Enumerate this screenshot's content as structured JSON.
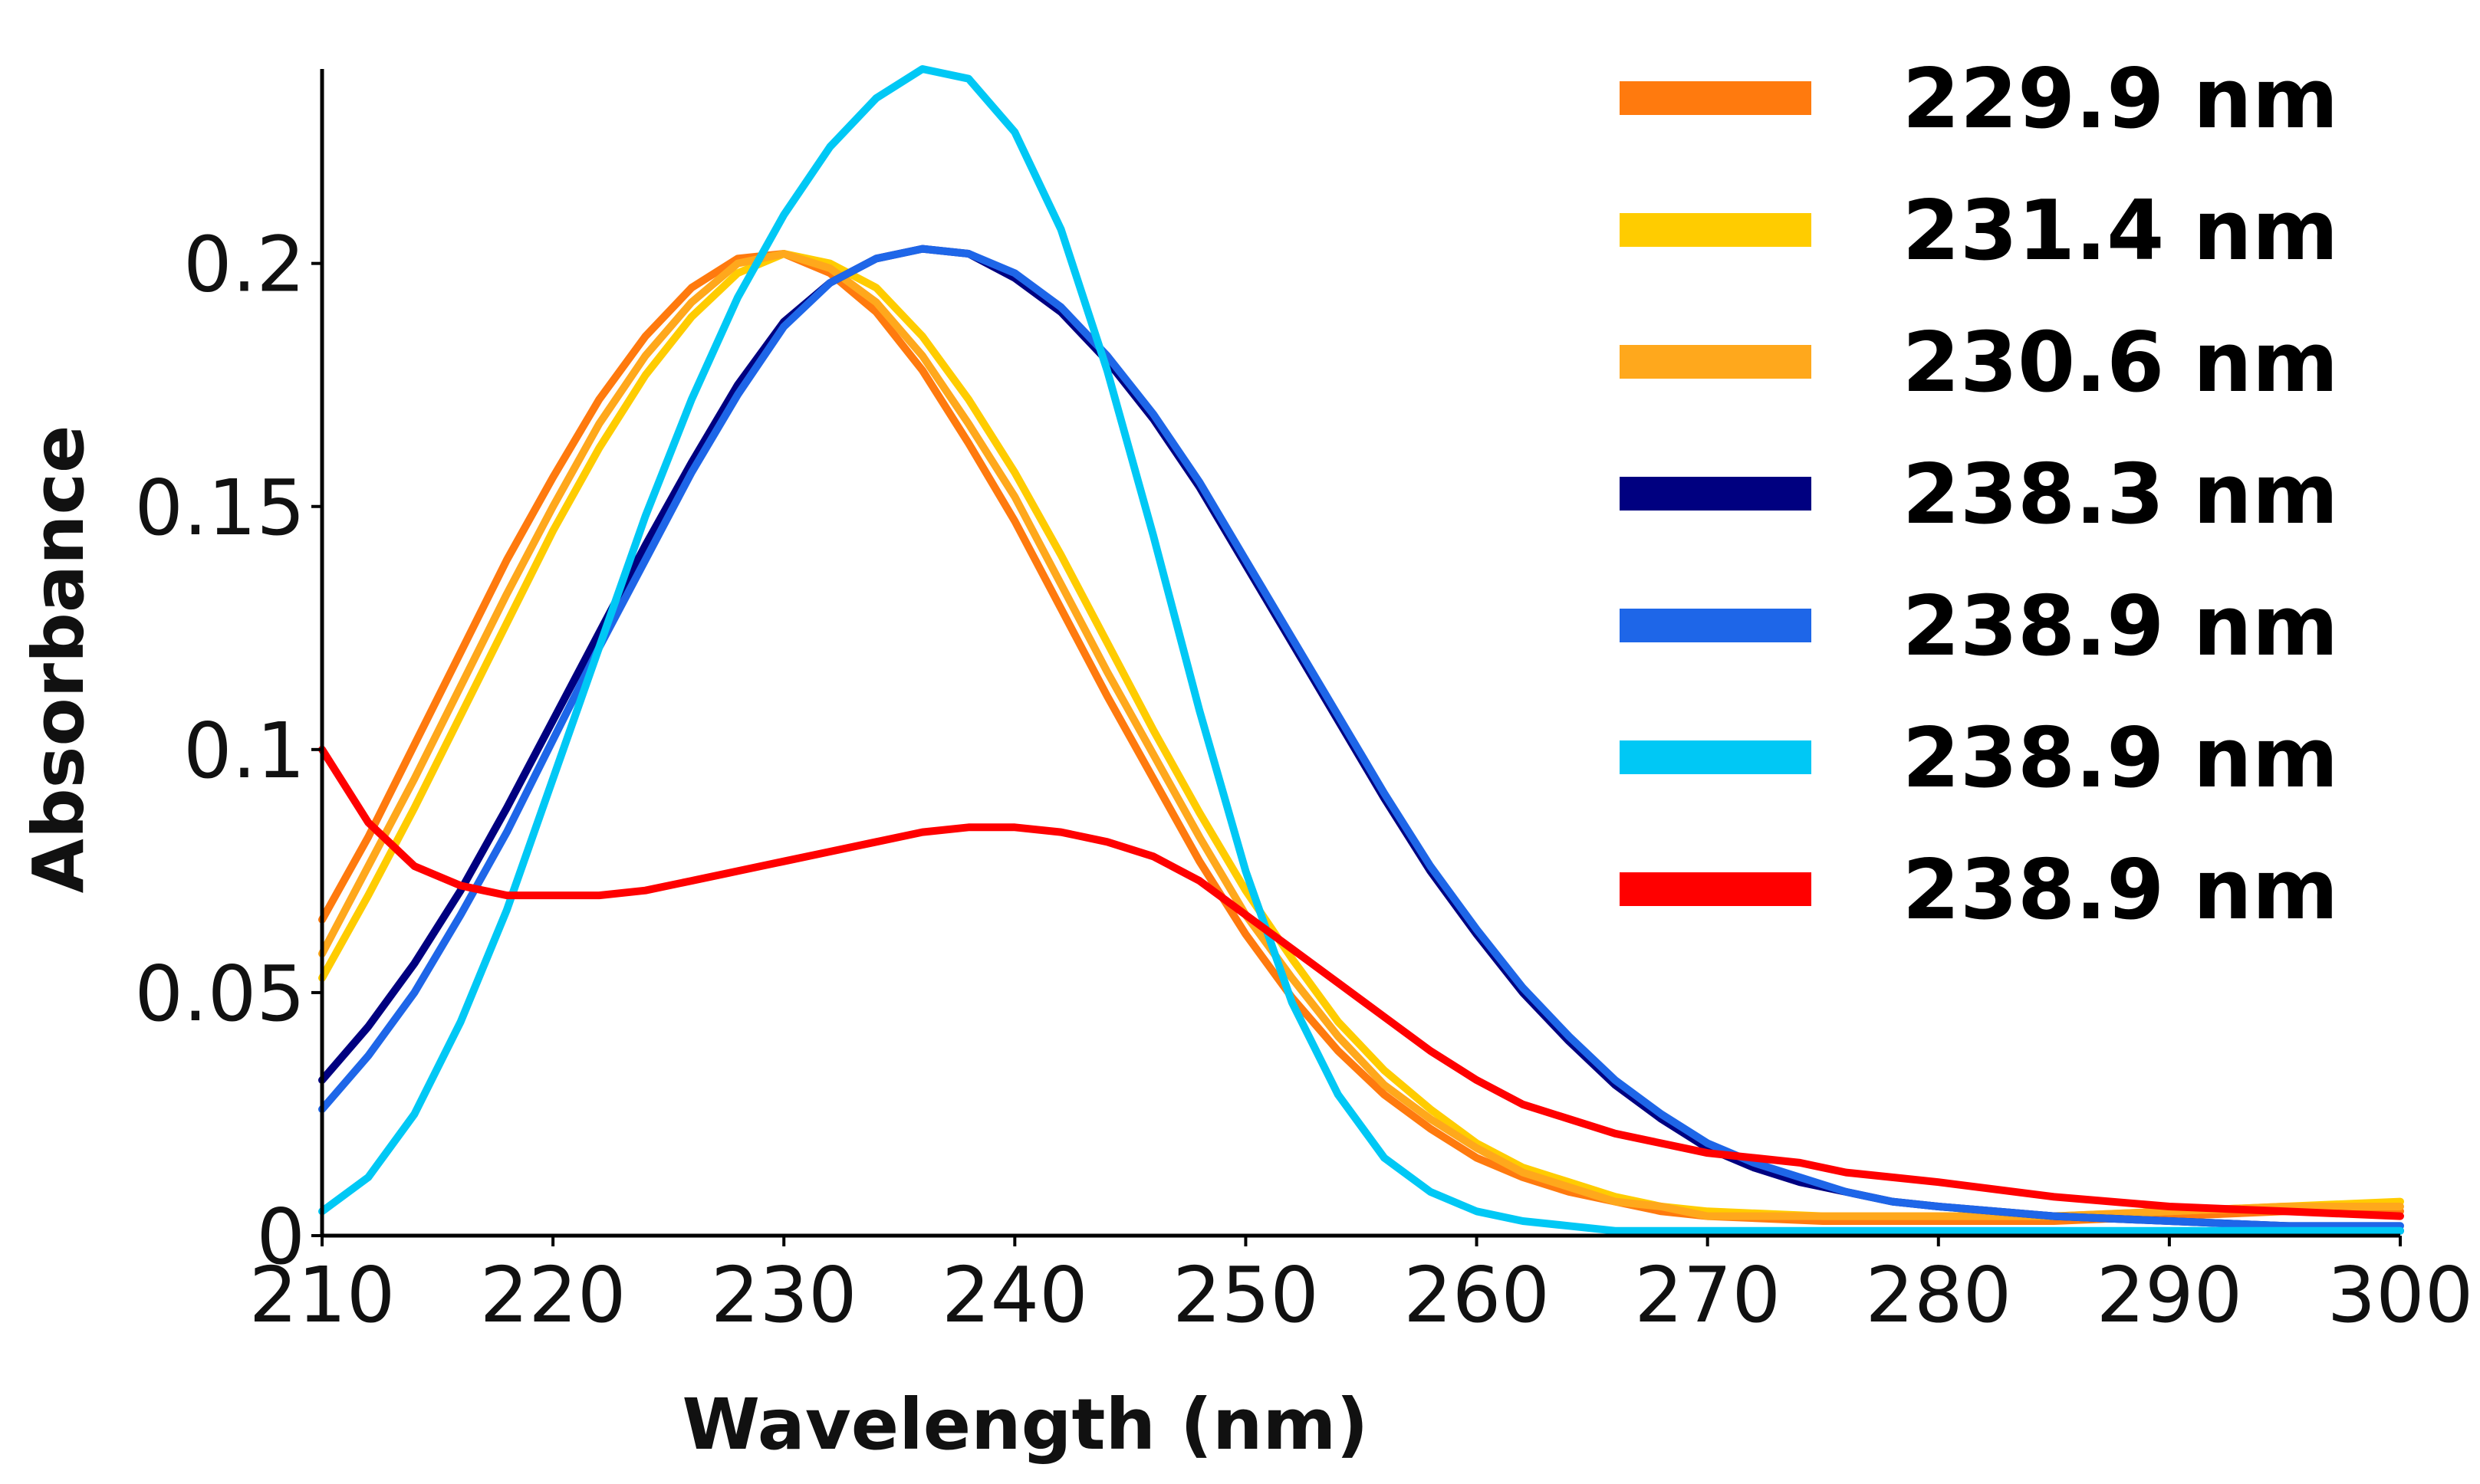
{
  "chart_data": {
    "type": "line",
    "title": "",
    "xlabel": "Wavelength (nm)",
    "ylabel": "Absorbance",
    "xlim": [
      210,
      300
    ],
    "ylim": [
      0,
      0.24
    ],
    "grid": false,
    "legend_position": "top-right",
    "x_ticks": [
      {
        "value": 210,
        "label": "210"
      },
      {
        "value": 220,
        "label": "220"
      },
      {
        "value": 230,
        "label": "230"
      },
      {
        "value": 240,
        "label": "240"
      },
      {
        "value": 250,
        "label": "250"
      },
      {
        "value": 260,
        "label": "260"
      },
      {
        "value": 270,
        "label": "270"
      },
      {
        "value": 280,
        "label": "280"
      },
      {
        "value": 290,
        "label": "290"
      },
      {
        "value": 300,
        "label": "300"
      }
    ],
    "y_ticks": [
      {
        "value": 0,
        "label": "0"
      },
      {
        "value": 0.05,
        "label": "0.05"
      },
      {
        "value": 0.1,
        "label": "0.1"
      },
      {
        "value": 0.15,
        "label": "0.15"
      },
      {
        "value": 0.2,
        "label": "0.2"
      }
    ],
    "series": [
      {
        "name": "229.9 nm",
        "color": "#FF7A0E",
        "x": [
          210,
          212,
          214,
          216,
          218,
          220,
          222,
          224,
          226,
          228,
          230,
          232,
          234,
          236,
          238,
          240,
          242,
          244,
          246,
          248,
          250,
          252,
          254,
          256,
          258,
          260,
          262,
          264,
          266,
          268,
          270,
          275,
          280,
          285,
          290,
          295,
          300
        ],
        "y": [
          0.065,
          0.082,
          0.101,
          0.12,
          0.139,
          0.156,
          0.172,
          0.185,
          0.195,
          0.201,
          0.202,
          0.198,
          0.19,
          0.178,
          0.163,
          0.147,
          0.129,
          0.111,
          0.094,
          0.077,
          0.062,
          0.049,
          0.038,
          0.029,
          0.022,
          0.016,
          0.012,
          0.009,
          0.007,
          0.005,
          0.004,
          0.003,
          0.003,
          0.003,
          0.004,
          0.005,
          0.005
        ]
      },
      {
        "name": "231.4 nm",
        "color": "#FFCC00",
        "x": [
          210,
          212,
          214,
          216,
          218,
          220,
          222,
          224,
          226,
          228,
          230,
          232,
          234,
          236,
          238,
          240,
          242,
          244,
          246,
          248,
          250,
          252,
          254,
          256,
          258,
          260,
          262,
          264,
          266,
          268,
          270,
          275,
          280,
          285,
          290,
          295,
          300
        ],
        "y": [
          0.053,
          0.07,
          0.088,
          0.107,
          0.126,
          0.145,
          0.162,
          0.177,
          0.189,
          0.198,
          0.202,
          0.2,
          0.195,
          0.185,
          0.172,
          0.157,
          0.14,
          0.122,
          0.104,
          0.087,
          0.071,
          0.057,
          0.044,
          0.034,
          0.026,
          0.019,
          0.014,
          0.011,
          0.008,
          0.006,
          0.005,
          0.004,
          0.004,
          0.004,
          0.005,
          0.006,
          0.007
        ]
      },
      {
        "name": "230.6 nm",
        "color": "#FFA81C",
        "x": [
          210,
          212,
          214,
          216,
          218,
          220,
          222,
          224,
          226,
          228,
          230,
          232,
          234,
          236,
          238,
          240,
          242,
          244,
          246,
          248,
          250,
          252,
          254,
          256,
          258,
          260,
          262,
          264,
          266,
          268,
          270,
          275,
          280,
          285,
          290,
          295,
          300
        ],
        "y": [
          0.058,
          0.076,
          0.094,
          0.113,
          0.132,
          0.15,
          0.167,
          0.181,
          0.192,
          0.2,
          0.202,
          0.199,
          0.192,
          0.181,
          0.167,
          0.152,
          0.134,
          0.116,
          0.099,
          0.082,
          0.066,
          0.053,
          0.041,
          0.031,
          0.024,
          0.018,
          0.013,
          0.01,
          0.007,
          0.006,
          0.004,
          0.004,
          0.004,
          0.004,
          0.005,
          0.006,
          0.006
        ]
      },
      {
        "name": "238.3 nm",
        "color": "#000080",
        "x": [
          210,
          212,
          214,
          216,
          218,
          220,
          222,
          224,
          226,
          228,
          230,
          232,
          234,
          236,
          238,
          240,
          242,
          244,
          246,
          248,
          250,
          252,
          254,
          256,
          258,
          260,
          262,
          264,
          266,
          268,
          270,
          272,
          274,
          276,
          278,
          280,
          285,
          290,
          295,
          300
        ],
        "y": [
          0.032,
          0.043,
          0.056,
          0.071,
          0.088,
          0.106,
          0.124,
          0.142,
          0.159,
          0.175,
          0.188,
          0.196,
          0.201,
          0.203,
          0.202,
          0.197,
          0.19,
          0.18,
          0.168,
          0.154,
          0.138,
          0.122,
          0.106,
          0.09,
          0.075,
          0.062,
          0.05,
          0.04,
          0.031,
          0.024,
          0.018,
          0.014,
          0.011,
          0.009,
          0.007,
          0.006,
          0.004,
          0.003,
          0.002,
          0.001
        ]
      },
      {
        "name": "238.9 nm",
        "color": "#1E66E8",
        "x": [
          210,
          212,
          214,
          216,
          218,
          220,
          222,
          224,
          226,
          228,
          230,
          232,
          234,
          236,
          238,
          240,
          242,
          244,
          246,
          248,
          250,
          252,
          254,
          256,
          258,
          260,
          262,
          264,
          266,
          268,
          270,
          272,
          274,
          276,
          278,
          280,
          285,
          290,
          295,
          300
        ],
        "y": [
          0.026,
          0.037,
          0.05,
          0.066,
          0.083,
          0.102,
          0.121,
          0.139,
          0.157,
          0.173,
          0.187,
          0.196,
          0.201,
          0.203,
          0.202,
          0.198,
          0.191,
          0.181,
          0.169,
          0.155,
          0.139,
          0.123,
          0.107,
          0.091,
          0.076,
          0.063,
          0.051,
          0.041,
          0.032,
          0.025,
          0.019,
          0.015,
          0.012,
          0.009,
          0.007,
          0.006,
          0.004,
          0.003,
          0.002,
          0.002
        ]
      },
      {
        "name": "238.9 nm",
        "color": "#00C8F5",
        "x": [
          210,
          212,
          214,
          216,
          218,
          220,
          222,
          224,
          226,
          228,
          230,
          232,
          234,
          236,
          238,
          240,
          242,
          244,
          246,
          248,
          250,
          252,
          254,
          256,
          258,
          260,
          262,
          264,
          266,
          268,
          270,
          275,
          280,
          285,
          290,
          295,
          300
        ],
        "y": [
          0.005,
          0.012,
          0.025,
          0.044,
          0.067,
          0.094,
          0.121,
          0.148,
          0.172,
          0.193,
          0.21,
          0.224,
          0.234,
          0.24,
          0.238,
          0.227,
          0.207,
          0.178,
          0.144,
          0.108,
          0.075,
          0.048,
          0.029,
          0.016,
          0.009,
          0.005,
          0.003,
          0.002,
          0.001,
          0.001,
          0.001,
          0.001,
          0.001,
          0.001,
          0.001,
          0.001,
          0.001
        ]
      },
      {
        "name": "238.9 nm",
        "color": "#FF0000",
        "x": [
          210,
          212,
          214,
          216,
          218,
          220,
          222,
          224,
          226,
          228,
          230,
          232,
          234,
          236,
          238,
          240,
          242,
          244,
          246,
          248,
          250,
          252,
          254,
          256,
          258,
          260,
          262,
          264,
          266,
          268,
          270,
          272,
          274,
          276,
          278,
          280,
          285,
          290,
          295,
          300
        ],
        "y": [
          0.1,
          0.085,
          0.076,
          0.072,
          0.07,
          0.07,
          0.07,
          0.071,
          0.073,
          0.075,
          0.077,
          0.079,
          0.081,
          0.083,
          0.084,
          0.084,
          0.083,
          0.081,
          0.078,
          0.073,
          0.066,
          0.059,
          0.052,
          0.045,
          0.038,
          0.032,
          0.027,
          0.024,
          0.021,
          0.019,
          0.017,
          0.016,
          0.015,
          0.013,
          0.012,
          0.011,
          0.008,
          0.006,
          0.005,
          0.004
        ]
      }
    ]
  }
}
